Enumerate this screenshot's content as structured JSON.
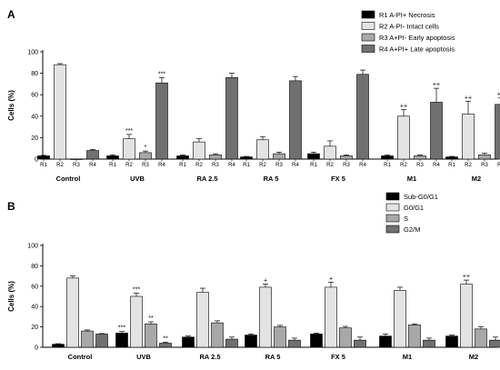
{
  "chart_data": [
    {
      "panel": "A",
      "type": "bar",
      "ylabel": "Cells (%)",
      "ylim": [
        0,
        100
      ],
      "yticks": [
        0,
        20,
        40,
        60,
        80,
        100
      ],
      "categories": [
        "Control",
        "UVB",
        "RA 2.5",
        "RA 5",
        "FX 5",
        "M1",
        "M2"
      ],
      "subcategories": [
        "R1",
        "R2",
        "R3",
        "R4"
      ],
      "legend_position": "top-right",
      "series": [
        {
          "name": "R1 A-PI+ Necrosis",
          "color": "#000000",
          "values": [
            3,
            3,
            3,
            2,
            5,
            3,
            2
          ],
          "errors": [
            0.5,
            1,
            0.8,
            0.5,
            1.5,
            0.8,
            0.5
          ],
          "annotations": [
            "",
            "",
            "",
            "",
            "",
            "",
            ""
          ]
        },
        {
          "name": "R2 A-PI- Intact cells",
          "color": "#e3e3e3",
          "values": [
            88,
            19,
            16,
            18,
            12,
            40,
            42
          ],
          "errors": [
            1,
            4,
            3,
            3,
            5,
            6,
            12
          ],
          "annotations": [
            "",
            "***",
            "",
            "",
            "",
            "++",
            "++"
          ]
        },
        {
          "name": "R3 A+PI- Early apoptosis",
          "color": "#a8a8a8",
          "values": [
            0,
            6,
            4,
            5,
            3,
            3,
            4
          ],
          "errors": [
            0,
            1.5,
            1,
            1.5,
            0.8,
            1,
            1.5
          ],
          "annotations": [
            "",
            "*",
            "",
            "",
            "",
            "",
            ""
          ]
        },
        {
          "name": "R4 A+PI+ Late apoptosis",
          "color": "#707070",
          "values": [
            8,
            71,
            76,
            73,
            79,
            53,
            51
          ],
          "errors": [
            1,
            5,
            4,
            4,
            4,
            13,
            6
          ],
          "annotations": [
            "",
            "***",
            "",
            "",
            "",
            "++",
            "++"
          ]
        }
      ]
    },
    {
      "panel": "B",
      "type": "bar",
      "ylabel": "Cells (%)",
      "ylim": [
        0,
        100
      ],
      "yticks": [
        0,
        20,
        40,
        60,
        80,
        100
      ],
      "categories": [
        "Control",
        "UVB",
        "RA 2.5",
        "RA 5",
        "FX 5",
        "M1",
        "M2"
      ],
      "legend_position": "top-right",
      "series": [
        {
          "name": "Sub-G0/G1",
          "color": "#000000",
          "values": [
            3,
            14,
            10,
            12,
            13,
            11,
            11
          ],
          "errors": [
            0.5,
            1.5,
            1,
            1,
            1,
            2,
            1
          ],
          "annotations": [
            "",
            "***",
            "",
            "",
            "",
            "",
            ""
          ]
        },
        {
          "name": "G0/G1",
          "color": "#e3e3e3",
          "values": [
            68,
            50,
            54,
            59,
            59,
            56,
            62
          ],
          "errors": [
            2,
            3,
            4,
            3,
            5,
            3,
            4
          ],
          "annotations": [
            "",
            "***",
            "",
            "+",
            "+",
            "",
            "++"
          ]
        },
        {
          "name": "S",
          "color": "#a8a8a8",
          "values": [
            16,
            23,
            24,
            20,
            19,
            22,
            18
          ],
          "errors": [
            1,
            2,
            2,
            1.5,
            1.5,
            1,
            2
          ],
          "annotations": [
            "",
            "**",
            "",
            "",
            "",
            "",
            ""
          ]
        },
        {
          "name": "G2/M",
          "color": "#707070",
          "values": [
            13,
            4,
            8,
            7,
            7,
            7,
            7
          ],
          "errors": [
            0.5,
            1,
            2,
            2,
            3,
            2,
            3
          ],
          "annotations": [
            "",
            "**",
            "",
            "",
            "",
            "",
            ""
          ]
        }
      ]
    }
  ]
}
